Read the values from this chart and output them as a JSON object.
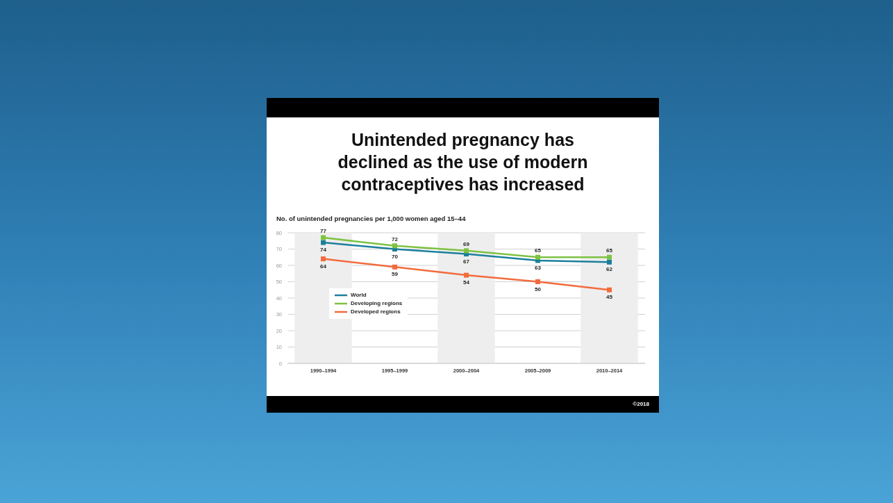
{
  "chart_data": {
    "type": "line",
    "title": "Unintended pregnancy has declined as the use of modern contraceptives has increased",
    "ylabel": "No. of unintended pregnancies per 1,000 women aged 15–44",
    "categories": [
      "1990–1994",
      "1995–1999",
      "2000–2004",
      "2005–2009",
      "2010–2014"
    ],
    "series": [
      {
        "name": "World",
        "color": "#1b7f9c",
        "values": [
          74,
          70,
          67,
          63,
          62
        ]
      },
      {
        "name": "Developing regions",
        "color": "#7dc242",
        "values": [
          77,
          72,
          69,
          65,
          65
        ]
      },
      {
        "name": "Developed regions",
        "color": "#f26b3d",
        "values": [
          64,
          59,
          54,
          50,
          45
        ]
      }
    ],
    "ylim": [
      0,
      80
    ],
    "yticks": [
      0,
      10,
      20,
      30,
      40,
      50,
      60,
      70,
      80
    ],
    "grid": "y",
    "legend": "left",
    "marker": "square",
    "line_style": "solid",
    "data_labels": true,
    "bands": [
      {
        "axis": "x",
        "from": "1990–1994",
        "to": "1990–1994",
        "color": "#eeeeee"
      },
      {
        "axis": "x",
        "from": "2000–2004",
        "to": "2000–2004",
        "color": "#eeeeee"
      },
      {
        "axis": "x",
        "from": "2010–2014",
        "to": "2010–2014",
        "color": "#eeeeee"
      }
    ],
    "annotations": [
      "©2018"
    ]
  }
}
